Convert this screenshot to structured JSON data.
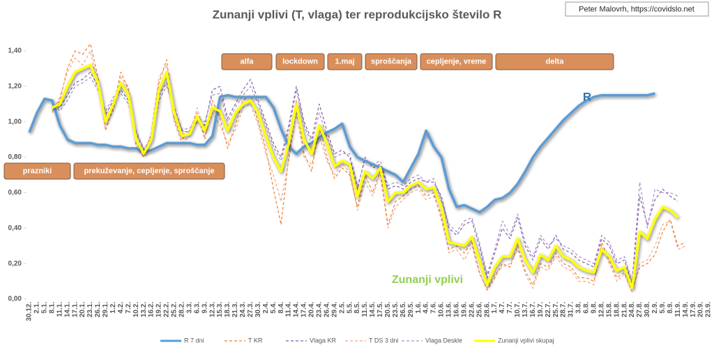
{
  "chart_data": {
    "type": "line",
    "title": "Zunanji vplivi (T, vlaga) ter reprodukcijsko število R",
    "source": "Peter Malovrh, https://covidslo.net",
    "annotations": [
      "alfa",
      "lockdown",
      "1.maj",
      "sproščanja",
      "cepljenje, vreme",
      "delta",
      "prazniki",
      "prekuževanje, cepljenje, sproščanje",
      "R",
      "Zunanji vplivi"
    ],
    "categories": [
      "30.12.",
      "2.1.",
      "5.1.",
      "8.1.",
      "11.1.",
      "14.1.",
      "17.1.",
      "20.1.",
      "23.1.",
      "26.1.",
      "29.1.",
      "1.2.",
      "4.2.",
      "7.2.",
      "10.2.",
      "13.2.",
      "16.2.",
      "19.2.",
      "22.2.",
      "25.2.",
      "28.2.",
      "3.3.",
      "6.3.",
      "9.3.",
      "12.3.",
      "15.3.",
      "18.3.",
      "21.3.",
      "24.3.",
      "27.3.",
      "30.3.",
      "2.4.",
      "5.4.",
      "8.4.",
      "11.4.",
      "14.4.",
      "17.4.",
      "20.4.",
      "23.4.",
      "26.4.",
      "29.4.",
      "2.5.",
      "5.5.",
      "8.5.",
      "11.5.",
      "14.5.",
      "17.5.",
      "20.5.",
      "23.5.",
      "26.5.",
      "29.5.",
      "1.6.",
      "4.6.",
      "7.6.",
      "10.6.",
      "13.6.",
      "16.6.",
      "19.6.",
      "22.6.",
      "25.6.",
      "28.6.",
      "1.7.",
      "4.7.",
      "7.7.",
      "10.7.",
      "13.7.",
      "16.7.",
      "19.7.",
      "22.7.",
      "25.7.",
      "28.7.",
      "31.7.",
      "3.8.",
      "6.8.",
      "9.8.",
      "12.8.",
      "15.8.",
      "18.8.",
      "21.8.",
      "24.8.",
      "27.8.",
      "30.8.",
      "2.9.",
      "5.9.",
      "8.9.",
      "11.9.",
      "14.9.",
      "17.9.",
      "20.9.",
      "23.9."
    ],
    "ylim": [
      0,
      1.4
    ],
    "yticks": [
      {
        "value": 0,
        "label": "0,00"
      },
      {
        "value": 0.2,
        "label": "0,20"
      },
      {
        "value": 0.4,
        "label": "0,40"
      },
      {
        "value": 0.6,
        "label": "0,60"
      },
      {
        "value": 0.8,
        "label": "0,80"
      },
      {
        "value": 1,
        "label": "1,00"
      },
      {
        "value": 1.2,
        "label": "1,20"
      },
      {
        "value": 1.4,
        "label": "1,40"
      }
    ],
    "grid": false,
    "legend": "bottom",
    "series": [
      {
        "name": "R 7 dni",
        "color": "#5b9bd5",
        "style": "solid",
        "values": [
          0.94,
          1.05,
          1.13,
          1.12,
          0.98,
          0.9,
          0.88,
          0.88,
          0.88,
          0.87,
          0.87,
          0.86,
          0.86,
          0.85,
          0.85,
          0.83,
          0.84,
          0.86,
          0.88,
          0.88,
          0.88,
          0.88,
          0.87,
          0.87,
          0.92,
          1.14,
          1.15,
          1.14,
          1.14,
          1.14,
          1.14,
          1.14,
          1.08,
          0.96,
          0.86,
          0.82,
          0.86,
          0.88,
          0.91,
          0.94,
          0.96,
          0.99,
          0.86,
          0.8,
          0.78,
          0.76,
          0.74,
          0.72,
          0.7,
          0.66,
          0.74,
          0.82,
          0.95,
          0.86,
          0.8,
          0.62,
          0.52,
          0.53,
          0.51,
          0.49,
          0.52,
          0.56,
          0.57,
          0.6,
          0.65,
          0.72,
          0.8,
          0.86,
          0.91,
          0.96,
          1.01,
          1.05,
          1.09,
          1.12,
          1.14,
          1.15,
          1.15,
          1.15,
          1.15,
          1.15,
          1.15,
          1.15,
          1.16,
          null,
          null,
          null,
          null,
          null,
          null,
          null
        ]
      },
      {
        "name": "T KR",
        "color": "#ed7d31",
        "style": "dashed",
        "values": [
          null,
          null,
          null,
          1.06,
          1.12,
          1.3,
          1.4,
          1.38,
          1.44,
          1.25,
          0.95,
          1.08,
          1.28,
          1.18,
          0.86,
          0.8,
          0.92,
          1.22,
          1.35,
          1.02,
          0.9,
          0.95,
          1.05,
          0.9,
          1.12,
          1.02,
          0.85,
          0.98,
          1.12,
          1.15,
          1.0,
          0.85,
          0.62,
          0.42,
          0.8,
          1.12,
          0.82,
          0.72,
          0.98,
          0.8,
          0.68,
          0.74,
          0.7,
          0.52,
          0.7,
          0.6,
          0.72,
          0.42,
          0.55,
          0.58,
          0.62,
          0.64,
          0.58,
          0.6,
          0.45,
          0.28,
          0.3,
          0.26,
          0.32,
          0.15,
          0.05,
          0.12,
          0.2,
          0.18,
          0.3,
          0.16,
          0.08,
          0.2,
          0.18,
          0.26,
          0.2,
          0.18,
          0.12,
          0.12,
          0.1,
          0.32,
          0.22,
          0.12,
          0.15,
          0.05,
          0.18,
          0.2,
          0.25,
          0.38,
          0.45,
          0.3,
          0.32,
          null,
          null,
          null
        ]
      },
      {
        "name": "Vlaga KR",
        "color": "#7f5fa8",
        "style": "dashed",
        "values": [
          null,
          null,
          null,
          1.1,
          1.08,
          1.15,
          1.22,
          1.24,
          1.28,
          1.2,
          1.04,
          1.12,
          1.18,
          1.12,
          0.94,
          0.84,
          0.92,
          1.15,
          1.22,
          1.06,
          0.95,
          0.94,
          1.0,
          0.98,
          1.18,
          1.2,
          1.02,
          1.1,
          1.18,
          1.24,
          1.12,
          1.0,
          0.88,
          0.8,
          0.98,
          1.2,
          1.0,
          0.9,
          1.1,
          0.95,
          0.82,
          0.84,
          0.8,
          0.62,
          0.8,
          0.74,
          0.76,
          0.62,
          0.64,
          0.62,
          0.66,
          0.68,
          0.66,
          0.66,
          0.58,
          0.4,
          0.36,
          0.42,
          0.44,
          0.3,
          0.12,
          0.26,
          0.4,
          0.34,
          0.46,
          0.3,
          0.22,
          0.34,
          0.28,
          0.36,
          0.28,
          0.26,
          0.22,
          0.2,
          0.18,
          0.34,
          0.3,
          0.2,
          0.22,
          0.08,
          0.58,
          0.42,
          0.56,
          0.62,
          0.58,
          0.55,
          null,
          null,
          null,
          null
        ]
      },
      {
        "name": "T DS 3 dni",
        "color": "#f4a582",
        "style": "dashed",
        "values": [
          null,
          null,
          null,
          1.05,
          1.14,
          1.28,
          1.36,
          1.32,
          1.4,
          1.2,
          0.97,
          1.06,
          1.25,
          1.2,
          0.88,
          0.81,
          0.94,
          1.25,
          1.32,
          1.0,
          0.88,
          0.92,
          1.08,
          0.92,
          1.05,
          0.98,
          0.88,
          0.95,
          1.08,
          1.1,
          0.98,
          0.82,
          0.7,
          0.55,
          0.78,
          1.05,
          0.8,
          0.76,
          0.92,
          0.78,
          0.7,
          0.76,
          0.72,
          0.5,
          0.66,
          0.58,
          0.7,
          0.4,
          0.52,
          0.56,
          0.6,
          0.62,
          0.56,
          0.58,
          0.48,
          0.26,
          0.28,
          0.22,
          0.3,
          0.14,
          0.06,
          0.14,
          0.18,
          0.2,
          0.28,
          0.14,
          0.06,
          0.18,
          0.16,
          0.24,
          0.18,
          0.16,
          0.1,
          0.1,
          0.08,
          0.3,
          0.2,
          0.1,
          0.14,
          0.04,
          0.2,
          0.22,
          0.3,
          0.42,
          0.44,
          0.28,
          0.3,
          null,
          null,
          null
        ]
      },
      {
        "name": "Vlaga Deskle",
        "color": "#a98cc9",
        "style": "dashed",
        "values": [
          null,
          null,
          null,
          1.12,
          1.06,
          1.12,
          1.2,
          1.22,
          1.25,
          1.18,
          1.06,
          1.14,
          1.16,
          1.1,
          0.95,
          0.85,
          0.9,
          1.12,
          1.2,
          1.08,
          0.96,
          0.96,
          1.02,
          1.0,
          1.15,
          1.16,
          1.0,
          1.08,
          1.15,
          1.2,
          1.1,
          0.98,
          0.86,
          0.78,
          0.95,
          1.18,
          0.98,
          0.88,
          1.05,
          0.92,
          0.8,
          0.82,
          0.82,
          0.64,
          0.78,
          0.76,
          0.78,
          0.64,
          0.66,
          0.64,
          0.68,
          0.7,
          0.66,
          0.68,
          0.56,
          0.42,
          0.38,
          0.44,
          0.46,
          0.32,
          0.14,
          0.28,
          0.44,
          0.36,
          0.48,
          0.32,
          0.24,
          0.36,
          0.3,
          0.34,
          0.3,
          0.28,
          0.24,
          0.22,
          0.2,
          0.36,
          0.32,
          0.22,
          0.24,
          0.1,
          0.66,
          0.4,
          0.62,
          0.6,
          0.6,
          0.58,
          null,
          null,
          null,
          null
        ]
      },
      {
        "name": "Zunanji vplivi skupaj",
        "color": "#ffff00",
        "style": "solid",
        "values": [
          null,
          null,
          null,
          1.08,
          1.1,
          1.2,
          1.28,
          1.3,
          1.32,
          1.22,
          1.0,
          1.1,
          1.22,
          1.15,
          0.9,
          0.82,
          0.9,
          1.18,
          1.28,
          1.05,
          0.92,
          0.93,
          1.03,
          0.95,
          1.08,
          1.06,
          0.95,
          1.05,
          1.1,
          1.12,
          1.05,
          0.92,
          0.8,
          0.72,
          0.88,
          1.1,
          0.9,
          0.82,
          0.98,
          0.88,
          0.75,
          0.78,
          0.76,
          0.58,
          0.72,
          0.68,
          0.74,
          0.55,
          0.6,
          0.6,
          0.64,
          0.66,
          0.62,
          0.63,
          0.52,
          0.32,
          0.31,
          0.3,
          0.35,
          0.22,
          0.08,
          0.18,
          0.24,
          0.24,
          0.34,
          0.22,
          0.15,
          0.25,
          0.22,
          0.3,
          0.24,
          0.22,
          0.18,
          0.16,
          0.15,
          0.28,
          0.24,
          0.16,
          0.18,
          0.06,
          0.38,
          0.34,
          0.45,
          0.52,
          0.5,
          0.46,
          null,
          null,
          null,
          null
        ]
      }
    ]
  }
}
